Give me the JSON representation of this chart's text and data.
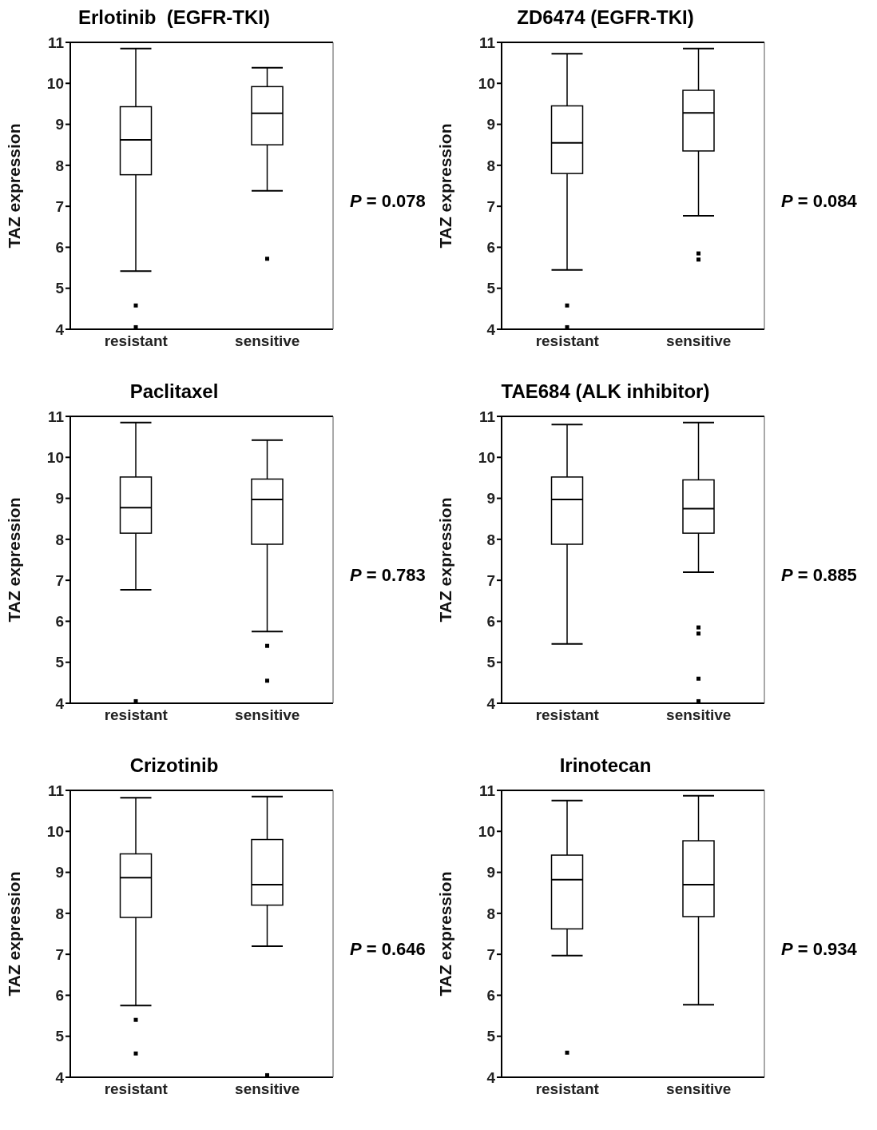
{
  "chart_data": [
    {
      "type": "box",
      "title": "Erlotinib  (EGFR-TKI)",
      "ylabel": "TAZ expression",
      "categories": [
        "resistant",
        "sensitive"
      ],
      "ylim": [
        4,
        11
      ],
      "yticks": [
        4,
        5,
        6,
        7,
        8,
        9,
        10,
        11
      ],
      "annotations": [
        "P = 0.078"
      ],
      "boxes": [
        {
          "low": 5.42,
          "q1": 7.77,
          "median": 8.62,
          "q3": 9.43,
          "high": 10.85,
          "outliers": [
            4.58,
            4.05
          ]
        },
        {
          "low": 7.38,
          "q1": 8.5,
          "median": 9.27,
          "q3": 9.92,
          "high": 10.38,
          "outliers": [
            5.72
          ]
        }
      ]
    },
    {
      "type": "box",
      "title": "ZD6474 (EGFR-TKI)",
      "ylabel": "TAZ expression",
      "categories": [
        "resistant",
        "sensitive"
      ],
      "ylim": [
        4,
        11
      ],
      "yticks": [
        4,
        5,
        6,
        7,
        8,
        9,
        10,
        11
      ],
      "annotations": [
        "P = 0.084"
      ],
      "boxes": [
        {
          "low": 5.45,
          "q1": 7.8,
          "median": 8.55,
          "q3": 9.45,
          "high": 10.72,
          "outliers": [
            4.58,
            4.05
          ]
        },
        {
          "low": 6.77,
          "q1": 8.35,
          "median": 9.28,
          "q3": 9.83,
          "high": 10.85,
          "outliers": [
            5.85,
            5.7
          ]
        }
      ]
    },
    {
      "type": "box",
      "title": "Paclitaxel",
      "ylabel": "TAZ expression",
      "categories": [
        "resistant",
        "sensitive"
      ],
      "ylim": [
        4,
        11
      ],
      "yticks": [
        4,
        5,
        6,
        7,
        8,
        9,
        10,
        11
      ],
      "annotations": [
        "P = 0.783"
      ],
      "boxes": [
        {
          "low": 6.77,
          "q1": 8.15,
          "median": 8.77,
          "q3": 9.52,
          "high": 10.85,
          "outliers": [
            4.05
          ]
        },
        {
          "low": 5.75,
          "q1": 7.88,
          "median": 8.97,
          "q3": 9.47,
          "high": 10.42,
          "outliers": [
            5.4,
            4.55
          ]
        }
      ]
    },
    {
      "type": "box",
      "title": "TAE684 (ALK inhibitor)",
      "ylabel": "TAZ expression",
      "categories": [
        "resistant",
        "sensitive"
      ],
      "ylim": [
        4,
        11
      ],
      "yticks": [
        4,
        5,
        6,
        7,
        8,
        9,
        10,
        11
      ],
      "annotations": [
        "P = 0.885"
      ],
      "boxes": [
        {
          "low": 5.45,
          "q1": 7.88,
          "median": 8.97,
          "q3": 9.52,
          "high": 10.8
        },
        {
          "low": 7.2,
          "q1": 8.15,
          "median": 8.75,
          "q3": 9.45,
          "high": 10.85,
          "outliers": [
            5.85,
            5.7,
            4.6,
            4.05
          ]
        }
      ]
    },
    {
      "type": "box",
      "title": "Crizotinib",
      "ylabel": "TAZ expression",
      "categories": [
        "resistant",
        "sensitive"
      ],
      "ylim": [
        4,
        11
      ],
      "yticks": [
        4,
        5,
        6,
        7,
        8,
        9,
        10,
        11
      ],
      "annotations": [
        "P = 0.646"
      ],
      "boxes": [
        {
          "low": 5.75,
          "q1": 7.9,
          "median": 8.87,
          "q3": 9.45,
          "high": 10.82,
          "outliers": [
            5.4,
            4.58
          ]
        },
        {
          "low": 7.2,
          "q1": 8.2,
          "median": 8.7,
          "q3": 9.8,
          "high": 10.85,
          "outliers": [
            4.05
          ]
        }
      ]
    },
    {
      "type": "box",
      "title": "Irinotecan",
      "ylabel": "TAZ expression",
      "categories": [
        "resistant",
        "sensitive"
      ],
      "ylim": [
        4,
        11
      ],
      "yticks": [
        4,
        5,
        6,
        7,
        8,
        9,
        10,
        11
      ],
      "annotations": [
        "P = 0.934"
      ],
      "boxes": [
        {
          "low": 6.97,
          "q1": 7.62,
          "median": 8.82,
          "q3": 9.42,
          "high": 10.75,
          "outliers": [
            4.6
          ]
        },
        {
          "low": 5.77,
          "q1": 7.92,
          "median": 8.7,
          "q3": 9.77,
          "high": 10.87
        }
      ]
    }
  ]
}
